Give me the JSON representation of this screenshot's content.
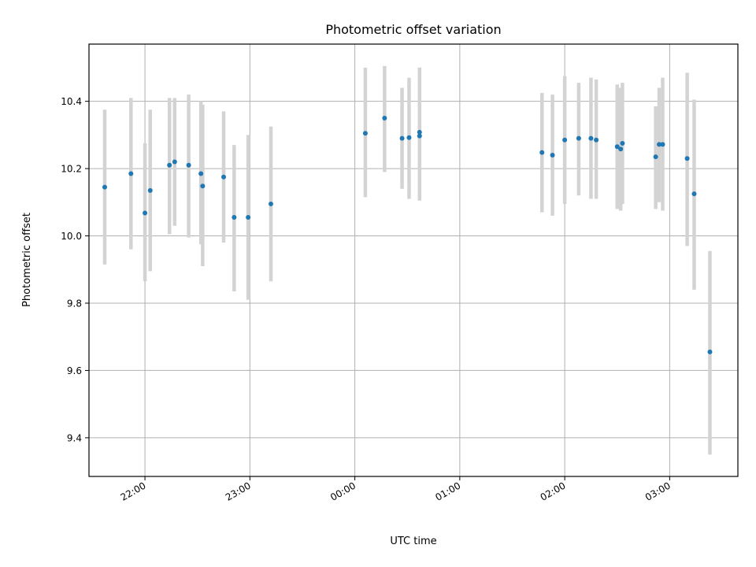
{
  "chart_data": {
    "type": "scatter",
    "title": "Photometric offset variation",
    "xlabel": "UTC time",
    "ylabel": "Photometric offset",
    "x_ticks": [
      "22:00",
      "23:00",
      "00:00",
      "01:00",
      "02:00",
      "03:00"
    ],
    "y_ticks": [
      "9.4",
      "9.6",
      "9.8",
      "10.0",
      "10.2",
      "10.4"
    ],
    "xlim": [
      "21:28",
      "03:39"
    ],
    "ylim": [
      9.285,
      10.57
    ],
    "grid": true,
    "colors": {
      "point": "#1f77b4",
      "errorbar": "#d3d3d3",
      "grid": "#b0b0b0"
    },
    "points": [
      {
        "t": "21:37",
        "y": 10.145,
        "lo": 9.915,
        "hi": 10.375
      },
      {
        "t": "21:52",
        "y": 10.185,
        "lo": 9.96,
        "hi": 10.41
      },
      {
        "t": "22:00",
        "y": 10.068,
        "lo": 9.865,
        "hi": 10.275
      },
      {
        "t": "22:03",
        "y": 10.135,
        "lo": 9.895,
        "hi": 10.375
      },
      {
        "t": "22:14",
        "y": 10.21,
        "lo": 10.005,
        "hi": 10.41
      },
      {
        "t": "22:17",
        "y": 10.22,
        "lo": 10.03,
        "hi": 10.41
      },
      {
        "t": "22:25",
        "y": 10.21,
        "lo": 9.995,
        "hi": 10.42
      },
      {
        "t": "22:32",
        "y": 10.185,
        "lo": 9.975,
        "hi": 10.4
      },
      {
        "t": "22:33",
        "y": 10.148,
        "lo": 9.91,
        "hi": 10.39
      },
      {
        "t": "22:45",
        "y": 10.175,
        "lo": 9.98,
        "hi": 10.37
      },
      {
        "t": "22:51",
        "y": 10.055,
        "lo": 9.835,
        "hi": 10.27
      },
      {
        "t": "22:59",
        "y": 10.055,
        "lo": 9.81,
        "hi": 10.3
      },
      {
        "t": "23:12",
        "y": 10.095,
        "lo": 9.865,
        "hi": 10.325
      },
      {
        "t": "00:06",
        "y": 10.305,
        "lo": 10.115,
        "hi": 10.5
      },
      {
        "t": "00:17",
        "y": 10.35,
        "lo": 10.19,
        "hi": 10.505
      },
      {
        "t": "00:27",
        "y": 10.29,
        "lo": 10.14,
        "hi": 10.44
      },
      {
        "t": "00:31",
        "y": 10.292,
        "lo": 10.11,
        "hi": 10.47
      },
      {
        "t": "00:37",
        "y": 10.297,
        "lo": 10.105,
        "hi": 10.5
      },
      {
        "t": "00:37",
        "y": 10.308,
        "lo": 10.105,
        "hi": 10.5
      },
      {
        "t": "01:47",
        "y": 10.248,
        "lo": 10.07,
        "hi": 10.425
      },
      {
        "t": "01:53",
        "y": 10.24,
        "lo": 10.06,
        "hi": 10.42
      },
      {
        "t": "02:00",
        "y": 10.285,
        "lo": 10.095,
        "hi": 10.475
      },
      {
        "t": "02:08",
        "y": 10.29,
        "lo": 10.12,
        "hi": 10.455
      },
      {
        "t": "02:15",
        "y": 10.29,
        "lo": 10.11,
        "hi": 10.47
      },
      {
        "t": "02:18",
        "y": 10.285,
        "lo": 10.11,
        "hi": 10.465
      },
      {
        "t": "02:30",
        "y": 10.265,
        "lo": 10.08,
        "hi": 10.45
      },
      {
        "t": "02:32",
        "y": 10.258,
        "lo": 10.075,
        "hi": 10.44
      },
      {
        "t": "02:33",
        "y": 10.275,
        "lo": 10.095,
        "hi": 10.455
      },
      {
        "t": "02:52",
        "y": 10.235,
        "lo": 10.08,
        "hi": 10.385
      },
      {
        "t": "02:54",
        "y": 10.272,
        "lo": 10.1,
        "hi": 10.44
      },
      {
        "t": "02:56",
        "y": 10.272,
        "lo": 10.075,
        "hi": 10.47
      },
      {
        "t": "03:10",
        "y": 10.23,
        "lo": 9.97,
        "hi": 10.485
      },
      {
        "t": "03:14",
        "y": 10.125,
        "lo": 9.84,
        "hi": 10.405
      },
      {
        "t": "03:23",
        "y": 9.655,
        "lo": 9.35,
        "hi": 9.955
      }
    ]
  }
}
